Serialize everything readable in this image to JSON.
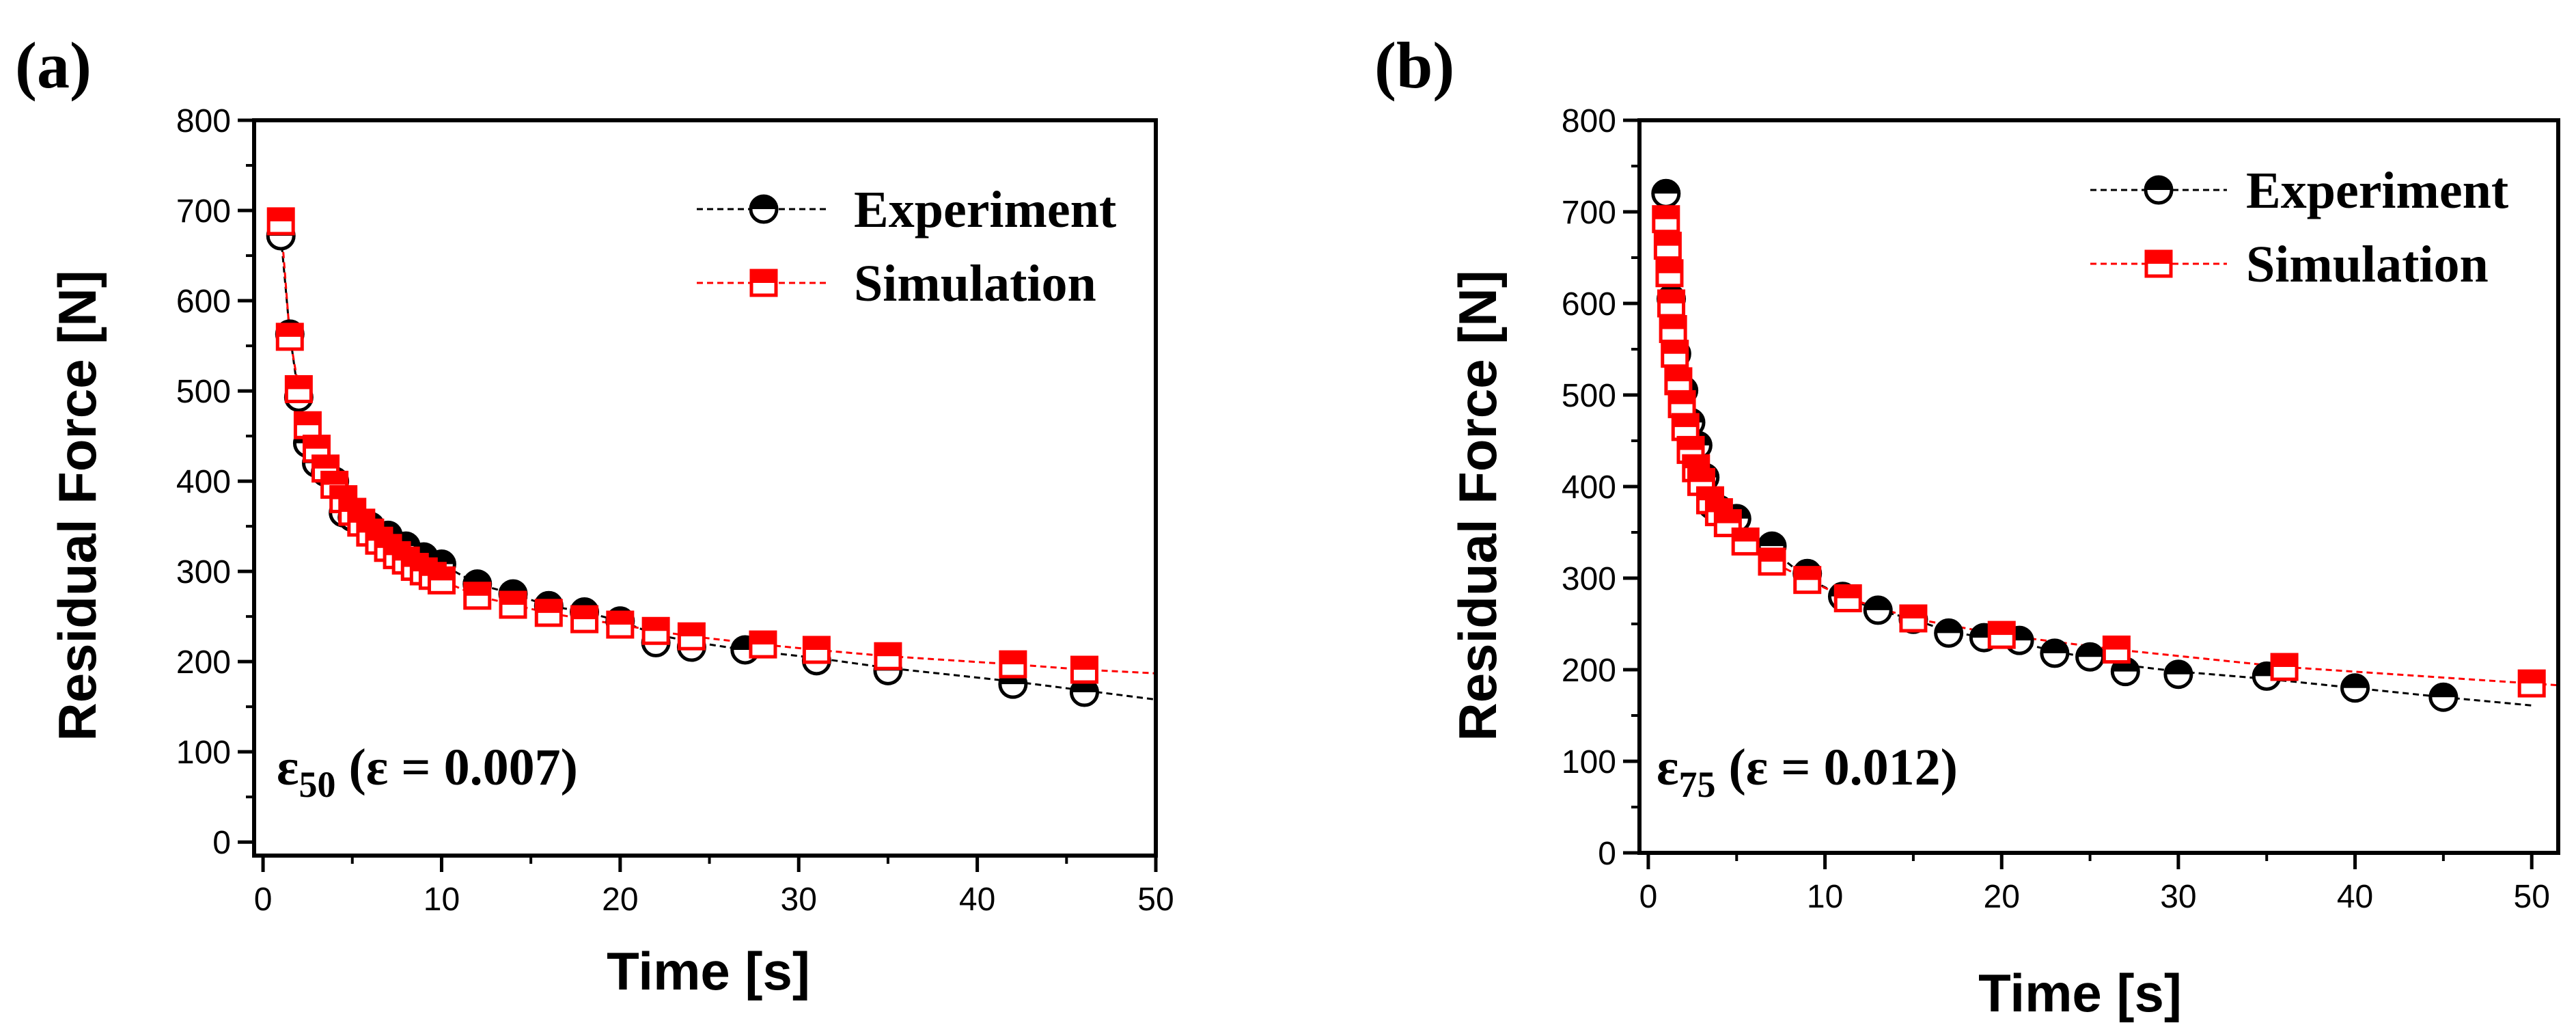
{
  "colors": {
    "experiment": "#000000",
    "simulation": "#ff0000"
  },
  "chart_data": [
    {
      "type": "scatter",
      "panel_label": "(a)",
      "annotation": {
        "symbol": "ε",
        "subscript": "50",
        "rest": " (ε = 0.007)"
      },
      "xlabel": "Time [s]",
      "ylabel": "Residual Force [N]",
      "xlim": [
        -0.5,
        50
      ],
      "ylim": [
        -15,
        800
      ],
      "xticks": [
        0,
        10,
        20,
        30,
        40,
        50
      ],
      "yticks": [
        0,
        100,
        200,
        300,
        400,
        500,
        600,
        700,
        800
      ],
      "legend_position": "top-right",
      "series": [
        {
          "name": "Experiment",
          "marker": "circle-half-filled-top",
          "line": "dashed",
          "color": "#000000",
          "x": [
            1,
            1.5,
            2,
            2.5,
            3,
            3.5,
            4,
            4.5,
            5,
            6,
            7,
            8,
            9,
            10,
            12,
            14,
            16,
            18,
            20,
            22,
            24,
            27,
            31,
            35,
            42,
            46
          ],
          "y": [
            672,
            563,
            493,
            442,
            420,
            410,
            400,
            365,
            360,
            350,
            340,
            328,
            316,
            308,
            286,
            275,
            262,
            255,
            245,
            221,
            216,
            213,
            201,
            190,
            175,
            166
          ],
          "fit_x": [
            1,
            1.5,
            2,
            2.5,
            3,
            3.5,
            4,
            5,
            6,
            7,
            8,
            9,
            10,
            12,
            14,
            16,
            18,
            20,
            22,
            24,
            27,
            31,
            35,
            42,
            46,
            50
          ],
          "fit_y": [
            672,
            563,
            493,
            442,
            420,
            410,
            395,
            370,
            352,
            340,
            328,
            316,
            308,
            286,
            275,
            262,
            255,
            245,
            230,
            222,
            213,
            204,
            193,
            178,
            168,
            158
          ]
        },
        {
          "name": "Simulation",
          "marker": "square-half-filled-top",
          "line": "dashed",
          "color": "#ff0000",
          "x": [
            1,
            1.5,
            2,
            2.5,
            3,
            3.5,
            4,
            4.5,
            5,
            5.5,
            6,
            6.5,
            7,
            7.5,
            8,
            8.5,
            9,
            9.5,
            10,
            12,
            14,
            16,
            18,
            20,
            22,
            24,
            28,
            31,
            35,
            42,
            46
          ],
          "y": [
            688,
            560,
            502,
            462,
            436,
            414,
            396,
            380,
            366,
            354,
            343,
            334,
            326,
            318,
            312,
            305,
            300,
            295,
            290,
            273,
            263,
            254,
            247,
            241,
            234,
            228,
            219,
            213,
            206,
            197,
            191
          ],
          "fit_x": [
            1,
            1.5,
            2,
            2.5,
            3,
            3.5,
            4,
            4.5,
            5,
            5.5,
            6,
            6.5,
            7,
            7.5,
            8,
            8.5,
            9,
            9.5,
            10,
            12,
            14,
            16,
            18,
            20,
            22,
            24,
            28,
            31,
            35,
            42,
            46,
            50
          ],
          "fit_y": [
            688,
            560,
            502,
            462,
            436,
            414,
            396,
            380,
            366,
            354,
            343,
            334,
            326,
            318,
            312,
            305,
            300,
            295,
            290,
            273,
            263,
            254,
            247,
            241,
            234,
            228,
            219,
            213,
            206,
            197,
            191,
            187
          ]
        }
      ]
    },
    {
      "type": "scatter",
      "panel_label": "(b)",
      "annotation": {
        "symbol": "ε",
        "subscript": "75",
        "rest": " (ε = 0.012)"
      },
      "xlabel": "Time [s]",
      "ylabel": "Residual Force [N]",
      "xlim": [
        -0.5,
        51.5
      ],
      "ylim": [
        0,
        800
      ],
      "xticks": [
        0,
        10,
        20,
        30,
        40,
        50
      ],
      "yticks": [
        0,
        100,
        200,
        300,
        400,
        500,
        600,
        700,
        800
      ],
      "legend_position": "top-right",
      "series": [
        {
          "name": "Experiment",
          "marker": "circle-half-filled-top",
          "line": "dashed",
          "color": "#000000",
          "x": [
            1,
            1.3,
            1.6,
            2,
            2.4,
            2.8,
            3.2,
            3.6,
            4,
            5,
            7,
            9,
            11,
            13,
            15,
            17,
            19,
            21,
            23,
            25,
            27,
            30,
            35,
            40,
            45
          ],
          "y": [
            720,
            605,
            545,
            505,
            470,
            445,
            410,
            380,
            375,
            365,
            335,
            305,
            280,
            265,
            255,
            240,
            235,
            232,
            218,
            214,
            198,
            195,
            193,
            180,
            170
          ],
          "fit_x": [
            1,
            1.3,
            1.6,
            2,
            2.4,
            2.8,
            3.2,
            3.6,
            4,
            5,
            7,
            9,
            11,
            13,
            15,
            17,
            19,
            21,
            23,
            25,
            27,
            30,
            35,
            40,
            45,
            50
          ],
          "fit_y": [
            720,
            605,
            545,
            505,
            470,
            445,
            410,
            385,
            375,
            362,
            330,
            300,
            280,
            265,
            255,
            242,
            235,
            230,
            220,
            213,
            205,
            198,
            190,
            180,
            170,
            161
          ]
        },
        {
          "name": "Simulation",
          "marker": "square-half-filled-top",
          "line": "dashed",
          "color": "#ff0000",
          "x": [
            1,
            1.1,
            1.2,
            1.3,
            1.4,
            1.5,
            1.7,
            1.9,
            2.1,
            2.4,
            2.7,
            3,
            3.5,
            4,
            4.5,
            5.5,
            7,
            9,
            11.3,
            15,
            20,
            26.5,
            36,
            50
          ],
          "y": [
            692,
            663,
            633,
            600,
            572,
            545,
            515,
            490,
            465,
            440,
            420,
            405,
            385,
            372,
            360,
            340,
            318,
            298,
            278,
            256,
            238,
            222,
            203,
            185
          ],
          "fit_x": [
            1,
            1.1,
            1.2,
            1.3,
            1.4,
            1.5,
            1.7,
            1.9,
            2.1,
            2.4,
            2.7,
            3,
            3.5,
            4,
            4.5,
            5.5,
            7,
            9,
            11.3,
            15,
            20,
            26.5,
            36,
            50,
            51.5
          ],
          "fit_y": [
            692,
            663,
            633,
            600,
            572,
            545,
            515,
            490,
            465,
            440,
            420,
            405,
            385,
            372,
            360,
            340,
            318,
            298,
            278,
            256,
            238,
            222,
            203,
            185,
            183
          ]
        }
      ]
    }
  ]
}
